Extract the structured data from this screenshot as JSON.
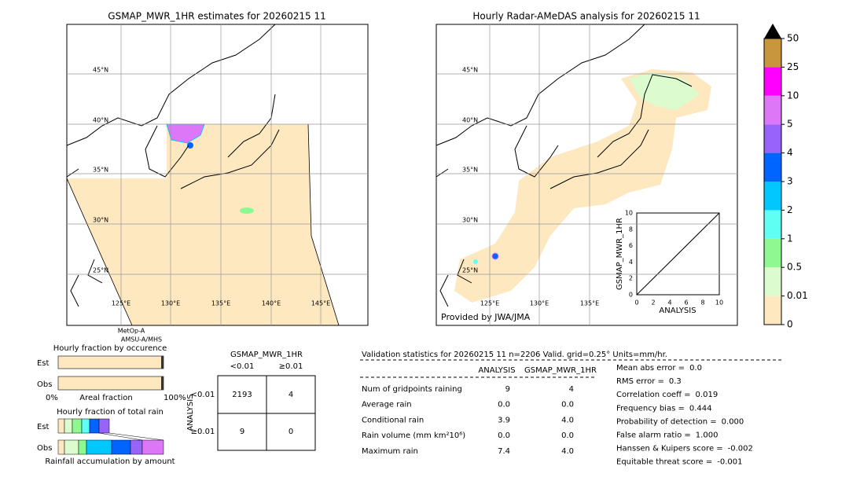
{
  "left_map": {
    "title": "GSMAP_MWR_1HR estimates for 20260215 11",
    "lat_labels": [
      "45°N",
      "40°N",
      "35°N",
      "30°N",
      "25°N"
    ],
    "lon_labels": [
      "125°E",
      "130°E",
      "135°E",
      "140°E",
      "145°E"
    ],
    "satellite": [
      "MetOp-A",
      "AMSU-A/MHS"
    ]
  },
  "right_map": {
    "title": "Hourly Radar-AMeDAS analysis for 20260215 11",
    "lat_labels": [
      "45°N",
      "40°N",
      "35°N",
      "30°N",
      "25°N"
    ],
    "lon_labels": [
      "125°E",
      "130°E",
      "135°E"
    ],
    "credit": "Provided by JWA/JMA",
    "inset": {
      "xlabel": "ANALYSIS",
      "ylabel": "GSMAP_MWR_1HR",
      "ticks": [
        0,
        2,
        4,
        6,
        8,
        10
      ]
    }
  },
  "colorbar": {
    "levels": [
      0,
      0.01,
      0.5,
      1,
      2,
      3,
      4,
      5,
      10,
      25,
      50
    ],
    "colors": [
      "#fde8c0",
      "#dcfcd0",
      "#90f890",
      "#60fff4",
      "#00c8ff",
      "#0064ff",
      "#9664f8",
      "#dc78f8",
      "#ff00ff",
      "#c8963c"
    ]
  },
  "occurrence": {
    "title": "Hourly fraction by occurence",
    "rows": [
      "Est",
      "Obs"
    ],
    "axis_labels": [
      "0%",
      "Areal fraction",
      "100%"
    ]
  },
  "total_rain": {
    "title": "Hourly fraction of total rain",
    "rows": [
      "Est",
      "Obs"
    ],
    "footer": "Rainfall accumulation by amount"
  },
  "contingency": {
    "title": "GSMAP_MWR_1HR",
    "columns": [
      "<0.01",
      "≥0.01"
    ],
    "row_axis": "ANALYSIS",
    "rows": [
      "<0.01",
      "≥0.01"
    ],
    "cells": [
      [
        2193,
        4
      ],
      [
        9,
        0
      ]
    ]
  },
  "validation": {
    "title": "Validation statistics for 20260215 11  n=2206 Valid. grid=0.25° Units=mm/hr.",
    "columns": [
      "ANALYSIS",
      "GSMAP_MWR_1HR"
    ],
    "rows": [
      [
        "Num of gridpoints raining",
        "9",
        "4"
      ],
      [
        "Average rain",
        "0.0",
        "0.0"
      ],
      [
        "Conditional rain",
        "3.9",
        "4.0"
      ],
      [
        "Rain volume (mm km²10⁶)",
        "0.0",
        "0.0"
      ],
      [
        "Maximum rain",
        "7.4",
        "4.0"
      ]
    ],
    "scores": [
      [
        "Mean abs error =",
        "0.0"
      ],
      [
        "RMS error =",
        "0.3"
      ],
      [
        "Correlation coeff =",
        "0.019"
      ],
      [
        "Frequency bias =",
        "0.444"
      ],
      [
        "Probability of detection =",
        "0.000"
      ],
      [
        "False alarm ratio =",
        "1.000"
      ],
      [
        "Hanssen & Kuipers score =",
        "-0.002"
      ],
      [
        "Equitable threat score =",
        "-0.001"
      ]
    ]
  }
}
